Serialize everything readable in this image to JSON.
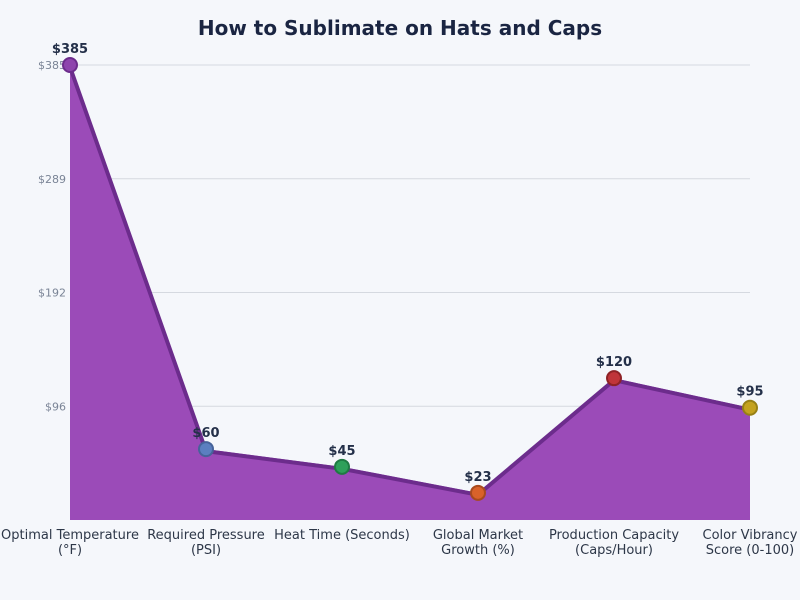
{
  "chart_data": {
    "type": "area",
    "title": "How to Sublimate on Hats and Caps",
    "categories": [
      [
        "Optimal Temperature",
        "(°F)"
      ],
      [
        "Required Pressure",
        "(PSI)"
      ],
      [
        "Heat Time (Seconds)"
      ],
      [
        "Global Market",
        "Growth (%)"
      ],
      [
        "Production Capacity",
        "(Caps/Hour)"
      ],
      [
        "Color Vibrancy",
        "Score (0-100)"
      ]
    ],
    "values": [
      385,
      60,
      45,
      23,
      120,
      95
    ],
    "data_labels": [
      "$385",
      "$60",
      "$45",
      "$23",
      "$120",
      "$95"
    ],
    "ylim": [
      0,
      385
    ],
    "yticks": [
      96.25,
      192.5,
      288.75,
      385
    ],
    "ytick_labels": [
      "$96",
      "$192",
      "$289",
      "$385"
    ],
    "grid": true,
    "colors": {
      "fill": "#9b4bb8",
      "line": "#6c2c8c",
      "markers": [
        "#8e44ad",
        "#5b7fc0",
        "#2ea05a",
        "#d9622a",
        "#c0353a",
        "#c4a21e"
      ],
      "marker_strokes": [
        "#6c2c8c",
        "#46639a",
        "#1f7a43",
        "#a84a1e",
        "#8e2226",
        "#978015"
      ]
    }
  }
}
